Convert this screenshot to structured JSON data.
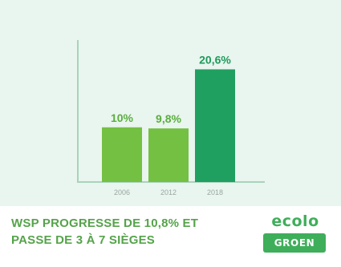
{
  "chart_data": {
    "type": "bar",
    "categories": [
      "2006",
      "2012",
      "2018"
    ],
    "values": [
      10,
      9.8,
      20.6
    ],
    "value_labels": [
      "10%",
      "9,8%",
      "20,6%"
    ],
    "bar_colors": [
      "#74c043",
      "#74c043",
      "#20a060"
    ],
    "label_colors": [
      "#5aae3e",
      "#5aae3e",
      "#1d9a5a"
    ],
    "title": "",
    "xlabel": "",
    "ylabel": "",
    "ylim": [
      0,
      28
    ],
    "grid": false
  },
  "headline": {
    "line1": "WSP PROGRESSE DE 10,8% ET",
    "line2": "PASSE DE 3 À 7 SIÈGES"
  },
  "logo": {
    "ecolo": "ecolo",
    "groen": "GROEN"
  },
  "colors": {
    "background_panel": "#e9f5ef",
    "headline": "#55a34a",
    "brand_green": "#3fae5a",
    "axis": "#a9d3bb"
  }
}
